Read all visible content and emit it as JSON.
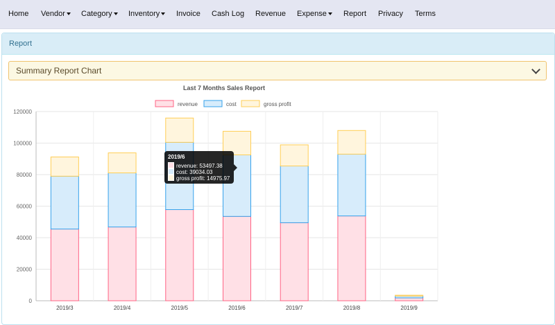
{
  "nav": {
    "items": [
      {
        "label": "Home",
        "dropdown": false
      },
      {
        "label": "Vendor",
        "dropdown": true
      },
      {
        "label": "Category",
        "dropdown": true
      },
      {
        "label": "Inventory",
        "dropdown": true
      },
      {
        "label": "Invoice",
        "dropdown": false
      },
      {
        "label": "Cash Log",
        "dropdown": false
      },
      {
        "label": "Revenue",
        "dropdown": false
      },
      {
        "label": "Expense",
        "dropdown": true
      },
      {
        "label": "Report",
        "dropdown": false
      },
      {
        "label": "Privacy",
        "dropdown": false
      },
      {
        "label": "Terms",
        "dropdown": false
      }
    ]
  },
  "panel": {
    "title": "Report"
  },
  "accordion": {
    "title": "Summary Report Chart",
    "icon": "chevron-down-icon"
  },
  "chart_data": {
    "type": "bar",
    "stacked": true,
    "title": "Last 7 Months Sales Report",
    "categories": [
      "2019/3",
      "2019/4",
      "2019/5",
      "2019/6",
      "2019/7",
      "2019/8",
      "2019/9"
    ],
    "series": [
      {
        "name": "revenue",
        "color": "#ff6384",
        "fill": "#ffe0e6",
        "values": [
          45500,
          46800,
          57800,
          53497.38,
          49500,
          53800,
          1800
        ]
      },
      {
        "name": "cost",
        "color": "#36a2eb",
        "fill": "#d7ecfb",
        "values": [
          33500,
          34300,
          42700,
          39034.03,
          36000,
          39200,
          1200
        ]
      },
      {
        "name": "gross profit",
        "color": "#ffce56",
        "fill": "#fff5dd",
        "values": [
          12200,
          12700,
          15400,
          14975.97,
          13400,
          15000,
          500
        ]
      }
    ],
    "ylim": [
      0,
      120000
    ],
    "yticks": [
      "0",
      "20000",
      "40000",
      "60000",
      "80000",
      "100000",
      "120000"
    ],
    "grid": true,
    "legend": "top",
    "tooltip": {
      "title": "2019/6",
      "lines": [
        "revenue: 53497.38",
        "cost: 39034.03",
        "gross profit: 14975.97"
      ]
    }
  }
}
